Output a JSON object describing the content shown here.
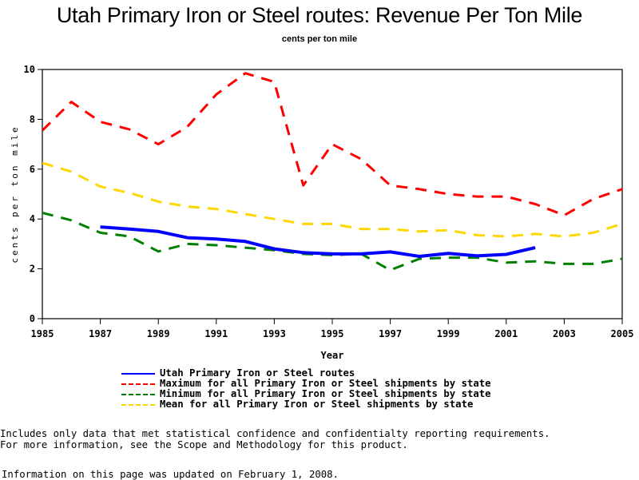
{
  "chart_data": {
    "type": "line",
    "title": "Utah Primary Iron or Steel routes: Revenue Per Ton Mile",
    "subtitle": "cents per ton mile",
    "xlabel": "Year",
    "ylabel": "cents per ton mile",
    "xlim": [
      1985,
      2005
    ],
    "ylim": [
      0,
      10
    ],
    "x_ticks": [
      "1985",
      "1987",
      "1989",
      "1991",
      "1993",
      "1995",
      "1997",
      "1999",
      "2001",
      "2003",
      "2005"
    ],
    "y_ticks": [
      "0",
      "2",
      "4",
      "6",
      "8",
      "10"
    ],
    "grid": false,
    "legend_position": "bottom",
    "series": [
      {
        "name": "Utah Primary Iron or Steel routes",
        "color": "#0000ff",
        "style": "solid",
        "x": [
          1987,
          1988,
          1989,
          1990,
          1991,
          1992,
          1993,
          1994,
          1995,
          1996,
          1997,
          1998,
          1999,
          2000,
          2001,
          2002
        ],
        "values": [
          3.68,
          3.6,
          3.5,
          3.25,
          3.2,
          3.1,
          2.8,
          2.65,
          2.6,
          2.6,
          2.68,
          2.5,
          2.62,
          2.52,
          2.58,
          2.85
        ]
      },
      {
        "name": "Maximum for all Primary Iron or Steel shipments by state",
        "color": "#ff0000",
        "style": "dashed",
        "x": [
          1985,
          1986,
          1987,
          1988,
          1989,
          1990,
          1991,
          1992,
          1993,
          1994,
          1995,
          1996,
          1997,
          1998,
          1999,
          2000,
          2001,
          2002,
          2003,
          2004,
          2005
        ],
        "values": [
          7.55,
          8.7,
          7.9,
          7.6,
          7.0,
          7.7,
          9.0,
          9.85,
          9.5,
          5.35,
          7.0,
          6.4,
          5.35,
          5.2,
          5.0,
          4.9,
          4.9,
          4.6,
          4.15,
          4.8,
          5.2
        ]
      },
      {
        "name": "Minimum for all Primary Iron or Steel shipments by state",
        "color": "#008000",
        "style": "dashed",
        "x": [
          1985,
          1986,
          1987,
          1988,
          1989,
          1990,
          1991,
          1992,
          1993,
          1994,
          1995,
          1996,
          1997,
          1998,
          1999,
          2000,
          2001,
          2002,
          2003,
          2004,
          2005
        ],
        "values": [
          4.25,
          3.95,
          3.45,
          3.3,
          2.7,
          3.0,
          2.95,
          2.85,
          2.75,
          2.6,
          2.55,
          2.6,
          1.95,
          2.4,
          2.45,
          2.45,
          2.25,
          2.3,
          2.2,
          2.2,
          2.4
        ]
      },
      {
        "name": "Mean for all Primary Iron or Steel shipments by state",
        "color": "#ffd700",
        "style": "dashed",
        "x": [
          1985,
          1986,
          1987,
          1988,
          1989,
          1990,
          1991,
          1992,
          1993,
          1994,
          1995,
          1996,
          1997,
          1998,
          1999,
          2000,
          2001,
          2002,
          2003,
          2004,
          2005
        ],
        "values": [
          6.25,
          5.9,
          5.3,
          5.05,
          4.7,
          4.5,
          4.4,
          4.2,
          4.0,
          3.8,
          3.8,
          3.6,
          3.6,
          3.5,
          3.55,
          3.35,
          3.3,
          3.4,
          3.3,
          3.45,
          3.8
        ]
      }
    ]
  },
  "notes": {
    "line1": "Includes only data that met statistical confidence and confidentialty reporting requirements.",
    "line2": "For more information, see the Scope and Methodology for this product.",
    "updated": "Information on this page was updated on February 1, 2008."
  }
}
